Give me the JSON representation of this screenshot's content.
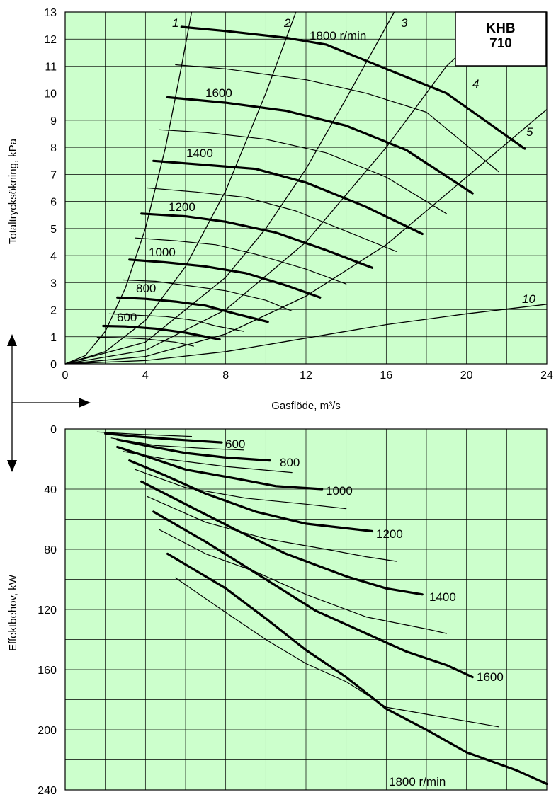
{
  "model_label": [
    "KHB",
    "710"
  ],
  "colors": {
    "plot_bg": "#ccffcc",
    "grid": "#000000",
    "line": "#000000"
  },
  "chart_data": [
    {
      "type": "line",
      "xlabel": "Gasflöde, m³/s",
      "ylabel": "Totaltrycksökning, kPa",
      "xlim": [
        0,
        24
      ],
      "ylim": [
        0,
        13
      ],
      "x_ticks": [
        0,
        4,
        8,
        12,
        16,
        20,
        24
      ],
      "y_ticks": [
        0,
        1,
        2,
        3,
        4,
        5,
        6,
        7,
        8,
        9,
        10,
        11,
        12,
        13
      ],
      "grid": true,
      "series": [
        {
          "name": "1800 r/min",
          "bold": true,
          "points": [
            [
              5.8,
              12.45
            ],
            [
              8,
              12.3
            ],
            [
              11,
              12.05
            ],
            [
              13,
              11.8
            ],
            [
              16,
              10.9
            ],
            [
              19,
              10.0
            ],
            [
              22.9,
              7.95
            ]
          ]
        },
        {
          "name": "",
          "bold": false,
          "points": [
            [
              5.5,
              11.05
            ],
            [
              8,
              10.9
            ],
            [
              12,
              10.5
            ],
            [
              15,
              10.0
            ],
            [
              18,
              9.3
            ],
            [
              21.6,
              7.1
            ]
          ]
        },
        {
          "name": "1600",
          "bold": true,
          "points": [
            [
              5.1,
              9.85
            ],
            [
              8,
              9.65
            ],
            [
              11,
              9.35
            ],
            [
              14,
              8.8
            ],
            [
              17,
              7.9
            ],
            [
              20.3,
              6.3
            ]
          ]
        },
        {
          "name": "",
          "bold": false,
          "points": [
            [
              4.7,
              8.65
            ],
            [
              7,
              8.55
            ],
            [
              10,
              8.3
            ],
            [
              13,
              7.8
            ],
            [
              16,
              6.9
            ],
            [
              19,
              5.55
            ]
          ]
        },
        {
          "name": "1400",
          "bold": true,
          "points": [
            [
              4.4,
              7.5
            ],
            [
              7,
              7.35
            ],
            [
              9.5,
              7.2
            ],
            [
              12,
              6.7
            ],
            [
              15,
              5.8
            ],
            [
              17.8,
              4.8
            ]
          ]
        },
        {
          "name": "",
          "bold": false,
          "points": [
            [
              4.1,
              6.5
            ],
            [
              6.5,
              6.35
            ],
            [
              9,
              6.15
            ],
            [
              11.5,
              5.65
            ],
            [
              14,
              4.9
            ],
            [
              16.5,
              4.15
            ]
          ]
        },
        {
          "name": "1200",
          "bold": true,
          "points": [
            [
              3.8,
              5.55
            ],
            [
              6,
              5.45
            ],
            [
              8,
              5.25
            ],
            [
              10.5,
              4.85
            ],
            [
              13,
              4.2
            ],
            [
              15.3,
              3.55
            ]
          ]
        },
        {
          "name": "",
          "bold": false,
          "points": [
            [
              3.5,
              4.65
            ],
            [
              5.5,
              4.55
            ],
            [
              7.5,
              4.4
            ],
            [
              9.5,
              4.05
            ],
            [
              12,
              3.5
            ],
            [
              14,
              2.95
            ]
          ]
        },
        {
          "name": "1000",
          "bold": true,
          "points": [
            [
              3.2,
              3.85
            ],
            [
              5,
              3.75
            ],
            [
              7,
              3.6
            ],
            [
              9,
              3.35
            ],
            [
              11,
              2.9
            ],
            [
              12.7,
              2.45
            ]
          ]
        },
        {
          "name": "",
          "bold": false,
          "points": [
            [
              2.9,
              3.1
            ],
            [
              4.5,
              3.05
            ],
            [
              6,
              2.9
            ],
            [
              8,
              2.7
            ],
            [
              10,
              2.35
            ],
            [
              11.3,
              1.95
            ]
          ]
        },
        {
          "name": "800",
          "bold": true,
          "points": [
            [
              2.6,
              2.45
            ],
            [
              4,
              2.4
            ],
            [
              5.5,
              2.3
            ],
            [
              7,
              2.15
            ],
            [
              8.5,
              1.85
            ],
            [
              10.1,
              1.55
            ]
          ]
        },
        {
          "name": "",
          "bold": false,
          "points": [
            [
              2.2,
              1.85
            ],
            [
              3.5,
              1.8
            ],
            [
              5,
              1.75
            ],
            [
              6.5,
              1.6
            ],
            [
              7.5,
              1.4
            ],
            [
              8.9,
              1.2
            ]
          ]
        },
        {
          "name": "600",
          "bold": true,
          "points": [
            [
              1.9,
              1.4
            ],
            [
              3,
              1.38
            ],
            [
              4.5,
              1.3
            ],
            [
              6,
              1.15
            ],
            [
              7.7,
              0.9
            ]
          ]
        },
        {
          "name": "",
          "bold": false,
          "points": [
            [
              1.6,
              0.98
            ],
            [
              2.5,
              0.97
            ],
            [
              4,
              0.92
            ],
            [
              5.5,
              0.8
            ],
            [
              6.4,
              0.65
            ]
          ]
        }
      ],
      "system_curves": [
        {
          "name": "1",
          "points": [
            [
              0,
              0
            ],
            [
              1,
              0.3
            ],
            [
              2,
              1.2
            ],
            [
              3,
              2.8
            ],
            [
              4,
              5.0
            ],
            [
              5,
              8.0
            ],
            [
              5.8,
              11.0
            ],
            [
              6.05,
              12.0
            ],
            [
              6.3,
              13.0
            ]
          ]
        },
        {
          "name": "2",
          "points": [
            [
              0,
              0
            ],
            [
              2,
              0.45
            ],
            [
              4,
              1.6
            ],
            [
              6,
              3.6
            ],
            [
              8,
              6.4
            ],
            [
              10,
              10.0
            ],
            [
              11.5,
              13.0
            ]
          ]
        },
        {
          "name": "3",
          "points": [
            [
              0,
              0
            ],
            [
              4,
              0.8
            ],
            [
              8,
              3.2
            ],
            [
              10,
              5.0
            ],
            [
              12,
              7.2
            ],
            [
              14,
              9.8
            ],
            [
              16.4,
              13.0
            ]
          ]
        },
        {
          "name": "4",
          "points": [
            [
              0,
              0
            ],
            [
              4,
              0.5
            ],
            [
              8,
              2.0
            ],
            [
              12,
              4.5
            ],
            [
              16,
              8.0
            ],
            [
              19,
              11.0
            ],
            [
              21.9,
              13.0
            ]
          ]
        },
        {
          "name": "5",
          "points": [
            [
              0,
              0
            ],
            [
              4,
              0.27
            ],
            [
              8,
              1.1
            ],
            [
              12,
              2.5
            ],
            [
              16,
              4.4
            ],
            [
              20,
              6.9
            ],
            [
              24,
              9.4
            ]
          ]
        },
        {
          "name": "10",
          "points": [
            [
              0,
              0
            ],
            [
              4,
              0.12
            ],
            [
              8,
              0.45
            ],
            [
              12,
              0.95
            ],
            [
              16,
              1.45
            ],
            [
              20,
              1.85
            ],
            [
              24,
              2.2
            ]
          ]
        }
      ],
      "annotations": [
        "1800 r/min",
        "1600",
        "1400",
        "1200",
        "1000",
        "800",
        "600",
        "1",
        "2",
        "3",
        "4",
        "5",
        "10"
      ]
    },
    {
      "type": "line",
      "xlabel": "",
      "ylabel": "Effektbehov, kW",
      "xlim": [
        0,
        24
      ],
      "ylim": [
        240,
        0
      ],
      "y_ticks": [
        0,
        40,
        80,
        120,
        160,
        200,
        240
      ],
      "grid": true,
      "series": [
        {
          "name": "600",
          "bold": true,
          "points": [
            [
              2,
              3
            ],
            [
              3.5,
              5
            ],
            [
              5.5,
              7
            ],
            [
              7.8,
              9
            ]
          ]
        },
        {
          "name": "",
          "bold": false,
          "points": [
            [
              1.6,
              2
            ],
            [
              3.5,
              3.5
            ],
            [
              6.3,
              5
            ]
          ]
        },
        {
          "name": "800",
          "bold": true,
          "points": [
            [
              2.6,
              7
            ],
            [
              4,
              11
            ],
            [
              6,
              16
            ],
            [
              8,
              19
            ],
            [
              10.2,
              21
            ]
          ]
        },
        {
          "name": "",
          "bold": false,
          "points": [
            [
              2.3,
              6
            ],
            [
              4.5,
              11
            ],
            [
              7,
              13
            ],
            [
              8.9,
              14
            ]
          ]
        },
        {
          "name": "1000",
          "bold": true,
          "points": [
            [
              2.6,
              12
            ],
            [
              4,
              18
            ],
            [
              6,
              27
            ],
            [
              8.5,
              33
            ],
            [
              10.5,
              38
            ],
            [
              12.8,
              40
            ]
          ]
        },
        {
          "name": "",
          "bold": false,
          "points": [
            [
              2.9,
              15
            ],
            [
              5,
              20
            ],
            [
              8,
              25
            ],
            [
              11.3,
              29
            ]
          ]
        },
        {
          "name": "1200",
          "bold": true,
          "points": [
            [
              3.2,
              21
            ],
            [
              5,
              31
            ],
            [
              7,
              43
            ],
            [
              9.5,
              55
            ],
            [
              12,
              63
            ],
            [
              15.3,
              68
            ]
          ]
        },
        {
          "name": "",
          "bold": false,
          "points": [
            [
              3.5,
              27
            ],
            [
              6,
              39
            ],
            [
              9,
              46
            ],
            [
              12,
              50
            ],
            [
              14,
              53
            ]
          ]
        },
        {
          "name": "1400",
          "bold": true,
          "points": [
            [
              3.8,
              35
            ],
            [
              6,
              50
            ],
            [
              8.5,
              67
            ],
            [
              11,
              83
            ],
            [
              14,
              98
            ],
            [
              16,
              106
            ],
            [
              17.8,
              110
            ]
          ]
        },
        {
          "name": "",
          "bold": false,
          "points": [
            [
              4.1,
              45
            ],
            [
              7,
              62
            ],
            [
              10,
              73
            ],
            [
              13,
              80
            ],
            [
              15,
              85
            ],
            [
              16.5,
              88
            ]
          ]
        },
        {
          "name": "1600",
          "bold": true,
          "points": [
            [
              4.4,
              55
            ],
            [
              7,
              75
            ],
            [
              10,
              100
            ],
            [
              12.5,
              121
            ],
            [
              15,
              136
            ],
            [
              17,
              148
            ],
            [
              19,
              157
            ],
            [
              20.3,
              165
            ]
          ]
        },
        {
          "name": "",
          "bold": false,
          "points": [
            [
              4.7,
              67
            ],
            [
              7,
              83
            ],
            [
              9.5,
              95
            ],
            [
              12,
              110
            ],
            [
              15,
              125
            ],
            [
              18,
              133
            ],
            [
              19,
              136
            ]
          ]
        },
        {
          "name": "1800 r/min",
          "bold": true,
          "points": [
            [
              5.1,
              83
            ],
            [
              8,
              106
            ],
            [
              10,
              126
            ],
            [
              12,
              147
            ],
            [
              14,
              165
            ],
            [
              16,
              186
            ],
            [
              18,
              200
            ],
            [
              20,
              215
            ],
            [
              22.5,
              227
            ],
            [
              24,
              236
            ]
          ]
        },
        {
          "name": "",
          "bold": false,
          "points": [
            [
              5.5,
              99
            ],
            [
              8,
              122
            ],
            [
              10,
              140
            ],
            [
              12,
              156
            ],
            [
              14,
              168
            ],
            [
              16,
              185
            ],
            [
              19,
              192
            ],
            [
              21.6,
              198
            ]
          ]
        }
      ],
      "annotations": [
        "600",
        "800",
        "1000",
        "1200",
        "1400",
        "1600",
        "1800 r/min"
      ]
    }
  ]
}
